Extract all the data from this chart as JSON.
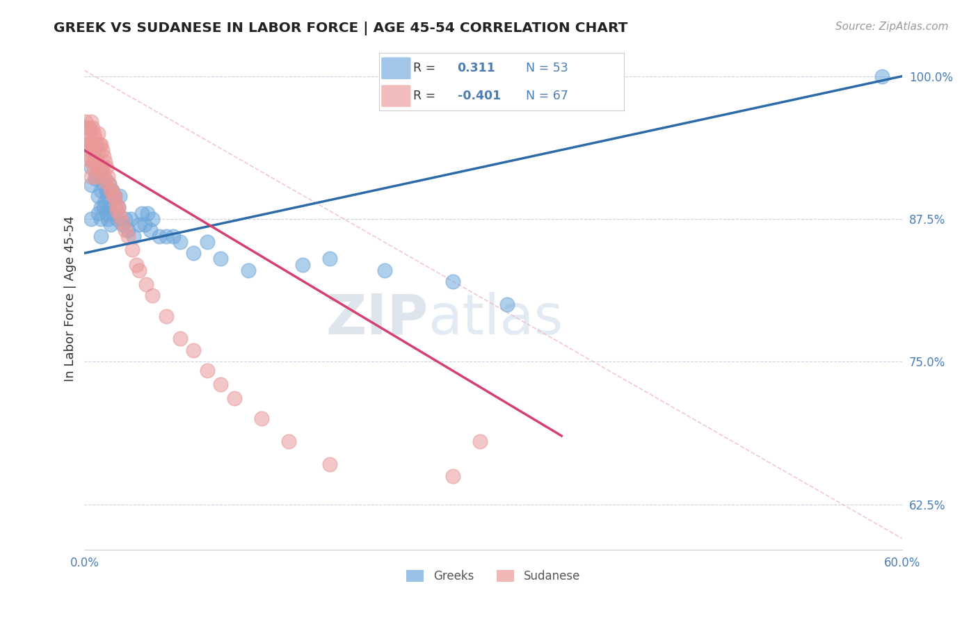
{
  "title": "GREEK VS SUDANESE IN LABOR FORCE | AGE 45-54 CORRELATION CHART",
  "ylabel": "In Labor Force | Age 45-54",
  "source": "Source: ZipAtlas.com",
  "xmin": 0.0,
  "xmax": 0.6,
  "ymin": 0.585,
  "ymax": 1.025,
  "yticks": [
    0.625,
    0.75,
    0.875,
    1.0
  ],
  "ytick_labels": [
    "62.5%",
    "75.0%",
    "87.5%",
    "100.0%"
  ],
  "xticks": [
    0.0,
    0.1,
    0.2,
    0.3,
    0.4,
    0.5,
    0.6
  ],
  "xtick_labels": [
    "0.0%",
    "",
    "",
    "",
    "",
    "",
    "60.0%"
  ],
  "greek_color": "#6fa8dc",
  "sudanese_color": "#ea9999",
  "greek_edge_color": "#4a86c8",
  "sudanese_edge_color": "#d46a8a",
  "greek_r": 0.311,
  "greek_n": 53,
  "sudanese_r": -0.401,
  "sudanese_n": 67,
  "watermark_zip": "ZIP",
  "watermark_atlas": "atlas",
  "greek_trendline_color": "#2d6aa8",
  "sudanese_trendline_color": "#d44070",
  "ref_line_color": "#e0b0c0",
  "greek_x": [
    0.005,
    0.005,
    0.005,
    0.008,
    0.01,
    0.01,
    0.01,
    0.012,
    0.012,
    0.012,
    0.012,
    0.014,
    0.014,
    0.015,
    0.015,
    0.016,
    0.016,
    0.017,
    0.017,
    0.018,
    0.018,
    0.019,
    0.02,
    0.021,
    0.022,
    0.024,
    0.025,
    0.026,
    0.028,
    0.03,
    0.032,
    0.034,
    0.036,
    0.04,
    0.042,
    0.044,
    0.046,
    0.048,
    0.05,
    0.055,
    0.06,
    0.065,
    0.07,
    0.08,
    0.09,
    0.1,
    0.12,
    0.16,
    0.18,
    0.22,
    0.27,
    0.31,
    0.585
  ],
  "greek_y": [
    0.92,
    0.905,
    0.875,
    0.91,
    0.915,
    0.895,
    0.88,
    0.9,
    0.885,
    0.875,
    0.86,
    0.905,
    0.885,
    0.91,
    0.89,
    0.9,
    0.88,
    0.895,
    0.875,
    0.905,
    0.885,
    0.87,
    0.9,
    0.88,
    0.895,
    0.875,
    0.885,
    0.895,
    0.87,
    0.875,
    0.865,
    0.875,
    0.86,
    0.87,
    0.88,
    0.87,
    0.88,
    0.865,
    0.875,
    0.86,
    0.86,
    0.86,
    0.855,
    0.845,
    0.855,
    0.84,
    0.83,
    0.835,
    0.84,
    0.83,
    0.82,
    0.8,
    1.0
  ],
  "sudanese_x": [
    0.001,
    0.001,
    0.002,
    0.002,
    0.002,
    0.003,
    0.003,
    0.004,
    0.004,
    0.005,
    0.005,
    0.005,
    0.005,
    0.006,
    0.006,
    0.006,
    0.007,
    0.007,
    0.007,
    0.008,
    0.008,
    0.008,
    0.009,
    0.009,
    0.01,
    0.01,
    0.01,
    0.011,
    0.011,
    0.012,
    0.012,
    0.013,
    0.013,
    0.014,
    0.014,
    0.015,
    0.015,
    0.016,
    0.017,
    0.018,
    0.019,
    0.02,
    0.021,
    0.022,
    0.023,
    0.024,
    0.025,
    0.026,
    0.028,
    0.03,
    0.032,
    0.035,
    0.038,
    0.04,
    0.045,
    0.05,
    0.06,
    0.07,
    0.08,
    0.09,
    0.1,
    0.11,
    0.13,
    0.15,
    0.18,
    0.27,
    0.29
  ],
  "sudanese_y": [
    0.96,
    0.945,
    0.955,
    0.94,
    0.928,
    0.955,
    0.94,
    0.955,
    0.935,
    0.96,
    0.945,
    0.928,
    0.912,
    0.955,
    0.94,
    0.925,
    0.95,
    0.935,
    0.92,
    0.945,
    0.928,
    0.912,
    0.94,
    0.924,
    0.95,
    0.933,
    0.918,
    0.94,
    0.92,
    0.94,
    0.922,
    0.935,
    0.918,
    0.93,
    0.912,
    0.925,
    0.908,
    0.92,
    0.912,
    0.906,
    0.9,
    0.9,
    0.895,
    0.895,
    0.888,
    0.882,
    0.885,
    0.878,
    0.872,
    0.865,
    0.86,
    0.848,
    0.835,
    0.83,
    0.818,
    0.808,
    0.79,
    0.77,
    0.76,
    0.742,
    0.73,
    0.718,
    0.7,
    0.68,
    0.66,
    0.65,
    0.68
  ]
}
